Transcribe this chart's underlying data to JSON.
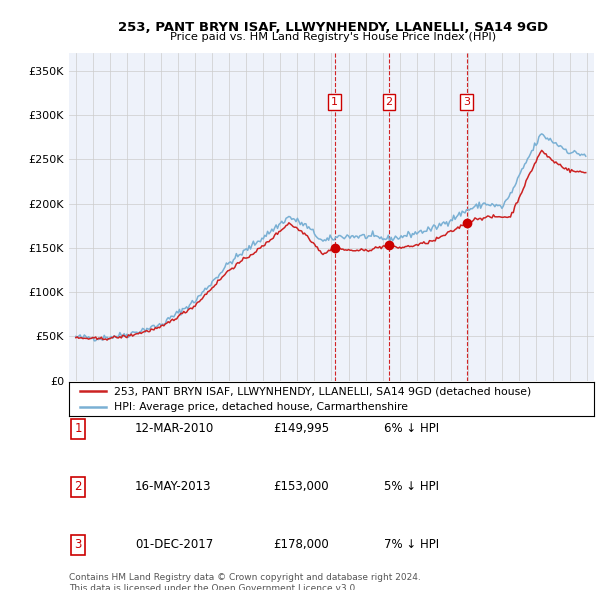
{
  "title": "253, PANT BRYN ISAF, LLWYNHENDY, LLANELLI, SA14 9GD",
  "subtitle": "Price paid vs. HM Land Registry's House Price Index (HPI)",
  "ylim": [
    0,
    370000
  ],
  "yticks": [
    0,
    50000,
    100000,
    150000,
    200000,
    250000,
    300000,
    350000
  ],
  "ytick_labels": [
    "£0",
    "£50K",
    "£100K",
    "£150K",
    "£200K",
    "£250K",
    "£300K",
    "£350K"
  ],
  "sale_dates": [
    2010.19,
    2013.37,
    2017.92
  ],
  "sale_prices": [
    149995,
    153000,
    178000
  ],
  "sale_labels": [
    "1",
    "2",
    "3"
  ],
  "vline_color": "#cc0000",
  "sale_marker_color": "#cc0000",
  "hpi_line_color": "#7ab0d4",
  "price_line_color": "#cc2222",
  "legend_label_price": "253, PANT BRYN ISAF, LLWYNHENDY, LLANELLI, SA14 9GD (detached house)",
  "legend_label_hpi": "HPI: Average price, detached house, Carmarthenshire",
  "table_data": [
    [
      "1",
      "12-MAR-2010",
      "£149,995",
      "6% ↓ HPI"
    ],
    [
      "2",
      "16-MAY-2013",
      "£153,000",
      "5% ↓ HPI"
    ],
    [
      "3",
      "01-DEC-2017",
      "£178,000",
      "7% ↓ HPI"
    ]
  ],
  "footer": "Contains HM Land Registry data © Crown copyright and database right 2024.\nThis data is licensed under the Open Government Licence v3.0.",
  "background_color": "#ffffff",
  "plot_bg_color": "#eef2fa",
  "grid_color": "#cccccc",
  "hpi_anchors_x": [
    1995.0,
    1996.5,
    1998.0,
    2000.0,
    2002.0,
    2004.0,
    2006.0,
    2007.5,
    2008.5,
    2009.5,
    2010.5,
    2012.0,
    2013.3,
    2014.0,
    2015.0,
    2016.0,
    2017.0,
    2018.0,
    2019.0,
    2020.0,
    2020.5,
    2021.5,
    2022.3,
    2023.0,
    2024.0,
    2024.9
  ],
  "hpi_anchors_y": [
    49000,
    48000,
    52000,
    63000,
    90000,
    133000,
    162000,
    185000,
    175000,
    157000,
    163000,
    163000,
    160000,
    162000,
    167000,
    172000,
    182000,
    193000,
    200000,
    196000,
    210000,
    250000,
    278000,
    270000,
    258000,
    255000
  ],
  "price_anchors_x": [
    1995.0,
    1996.5,
    1998.0,
    2000.0,
    2002.0,
    2004.0,
    2006.0,
    2007.5,
    2008.5,
    2009.5,
    2010.19,
    2011.0,
    2012.0,
    2013.37,
    2014.0,
    2015.0,
    2016.0,
    2017.0,
    2017.92,
    2018.5,
    2019.5,
    2020.5,
    2021.5,
    2022.3,
    2023.0,
    2024.0,
    2024.9
  ],
  "price_anchors_y": [
    48000,
    47000,
    50000,
    60000,
    85000,
    125000,
    152000,
    178000,
    165000,
    143000,
    149995,
    147000,
    147000,
    153000,
    150000,
    153000,
    158000,
    168000,
    178000,
    183000,
    185000,
    185000,
    228000,
    260000,
    248000,
    237000,
    235000
  ]
}
